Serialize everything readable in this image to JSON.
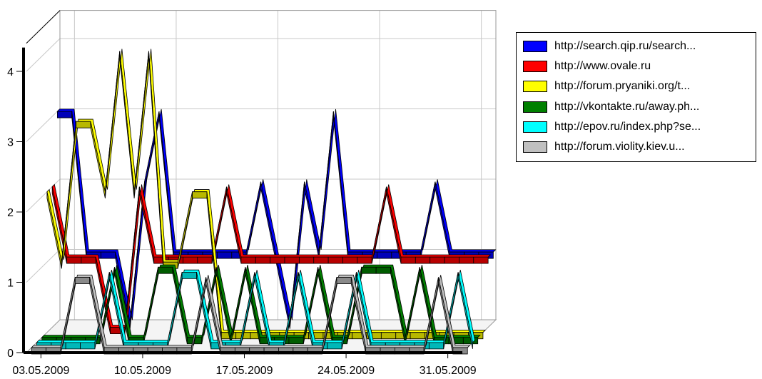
{
  "chart_data": {
    "type": "line",
    "style": "3d-ribbon",
    "ylim": [
      0,
      4.4
    ],
    "yticks": [
      "0",
      "1",
      "2",
      "3",
      "4"
    ],
    "xticks": [
      "03.05.2009",
      "10.05.2009",
      "17.05.2009",
      "24.05.2009",
      "31.05.2009"
    ],
    "x": [
      "02.05.2009",
      "03.05.2009",
      "04.05.2009",
      "05.05.2009",
      "06.05.2009",
      "07.05.2009",
      "08.05.2009",
      "09.05.2009",
      "10.05.2009",
      "11.05.2009",
      "12.05.2009",
      "13.05.2009",
      "14.05.2009",
      "15.05.2009",
      "16.05.2009",
      "17.05.2009",
      "18.05.2009",
      "19.05.2009",
      "20.05.2009",
      "21.05.2009",
      "22.05.2009",
      "23.05.2009",
      "24.05.2009",
      "25.05.2009",
      "26.05.2009",
      "27.05.2009",
      "28.05.2009",
      "29.05.2009",
      "30.05.2009",
      "31.05.2009",
      "01.06.2009"
    ],
    "grid": true,
    "legend_position": "right",
    "series": [
      {
        "name": "http://search.qip.ru/search...",
        "color": "#0000ff",
        "values": [
          3,
          3,
          1,
          1,
          1,
          0,
          2,
          3,
          1,
          1,
          1,
          1,
          1,
          1,
          2,
          1,
          0,
          2,
          1,
          3,
          1,
          1,
          1,
          1,
          1,
          1,
          2,
          1,
          1,
          1,
          1
        ]
      },
      {
        "name": "http://www.ovale.ru",
        "color": "#ff0000",
        "values": [
          2,
          1,
          1,
          1,
          0,
          0,
          2,
          1,
          1,
          1,
          1,
          1,
          2,
          1,
          1,
          1,
          1,
          1,
          1,
          1,
          1,
          1,
          1,
          2,
          1,
          1,
          1,
          1,
          1,
          1,
          1
        ]
      },
      {
        "name": "http://forum.pryaniki.org/t...",
        "color": "#ffff00",
        "values": [
          2,
          1,
          3,
          3,
          2,
          4,
          2,
          4,
          1,
          1,
          2,
          2,
          0,
          0,
          0,
          0,
          0,
          0,
          0,
          0,
          0,
          0,
          0,
          0,
          0,
          0,
          0,
          0,
          0,
          0,
          0
        ]
      },
      {
        "name": "http://vkontakte.ru/away.ph...",
        "color": "#008000",
        "values": [
          0,
          0,
          0,
          0,
          0,
          1,
          0,
          0,
          1,
          1,
          0,
          0,
          1,
          0,
          1,
          0,
          0,
          0,
          0,
          1,
          0,
          0,
          1,
          1,
          1,
          0,
          1,
          0,
          0,
          0,
          0
        ]
      },
      {
        "name": "http://epov.ru/index.php?se...",
        "color": "#00ffff",
        "values": [
          0,
          0,
          0,
          0,
          0,
          1,
          0,
          0,
          0,
          0,
          1,
          1,
          0,
          0,
          0,
          1,
          0,
          0,
          1,
          0,
          0,
          0,
          1,
          0,
          0,
          0,
          0,
          0,
          0,
          1,
          0
        ]
      },
      {
        "name": "http://forum.violity.kiev.u...",
        "color": "#c0c0c0",
        "values": [
          0,
          0,
          0,
          1,
          1,
          0,
          0,
          0,
          0,
          0,
          0,
          0,
          1,
          0,
          0,
          0,
          0,
          0,
          0,
          0,
          0,
          1,
          1,
          0,
          0,
          0,
          0,
          0,
          1,
          0,
          0
        ]
      }
    ]
  }
}
